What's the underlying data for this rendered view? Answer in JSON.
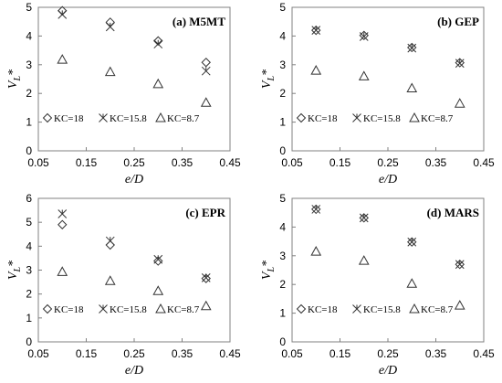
{
  "chart_data": [
    {
      "type": "scatter",
      "title": "(a) M5MT",
      "xlabel": "e/D",
      "ylabel": "V_L*",
      "xlim": [
        0.05,
        0.45
      ],
      "ylim": [
        0,
        5
      ],
      "xticks": [
        "0.05",
        "0.15",
        "0.25",
        "0.35",
        "0.45"
      ],
      "yticks": [
        "0",
        "1",
        "2",
        "3",
        "4",
        "5"
      ],
      "legend_placement": "bottom-left",
      "series": [
        {
          "name": "KC=18",
          "marker": "diamond",
          "x": [
            0.1,
            0.2,
            0.3,
            0.4
          ],
          "y": [
            4.88,
            4.48,
            3.83,
            3.08
          ]
        },
        {
          "name": "KC=15.8",
          "marker": "asterisk",
          "x": [
            0.1,
            0.2,
            0.3,
            0.4
          ],
          "y": [
            4.75,
            4.32,
            3.72,
            2.78
          ]
        },
        {
          "name": "KC=8.7",
          "marker": "triangle",
          "x": [
            0.1,
            0.2,
            0.3,
            0.4
          ],
          "y": [
            3.18,
            2.75,
            2.33,
            1.68
          ]
        }
      ]
    },
    {
      "type": "scatter",
      "title": "(b) GEP",
      "xlabel": "e/D",
      "ylabel": "V_L*",
      "xlim": [
        0.05,
        0.45
      ],
      "ylim": [
        0,
        5
      ],
      "xticks": [
        "0.05",
        "0.15",
        "0.25",
        "0.35",
        "0.45"
      ],
      "yticks": [
        "0",
        "1",
        "2",
        "3",
        "4",
        "5"
      ],
      "legend_placement": "bottom-left",
      "series": [
        {
          "name": "KC=18",
          "marker": "diamond",
          "x": [
            0.1,
            0.2,
            0.3,
            0.4
          ],
          "y": [
            4.2,
            4.02,
            3.6,
            3.07
          ]
        },
        {
          "name": "KC=15.8",
          "marker": "asterisk",
          "x": [
            0.1,
            0.2,
            0.3,
            0.4
          ],
          "y": [
            4.2,
            3.98,
            3.58,
            3.05
          ]
        },
        {
          "name": "KC=8.7",
          "marker": "triangle",
          "x": [
            0.1,
            0.2,
            0.3,
            0.4
          ],
          "y": [
            2.8,
            2.6,
            2.18,
            1.65
          ]
        }
      ]
    },
    {
      "type": "scatter",
      "title": "(c) EPR",
      "xlabel": "e/D",
      "ylabel": "V_L*",
      "xlim": [
        0.05,
        0.45
      ],
      "ylim": [
        0,
        6
      ],
      "xticks": [
        "0.05",
        "0.15",
        "0.25",
        "0.35",
        "0.45"
      ],
      "yticks": [
        "0",
        "1",
        "2",
        "3",
        "4",
        "5",
        "6"
      ],
      "legend_placement": "bottom-left",
      "series": [
        {
          "name": "KC=18",
          "marker": "diamond",
          "x": [
            0.1,
            0.2,
            0.3,
            0.4
          ],
          "y": [
            4.9,
            4.05,
            3.38,
            2.65
          ]
        },
        {
          "name": "KC=15.8",
          "marker": "asterisk",
          "x": [
            0.1,
            0.2,
            0.3,
            0.4
          ],
          "y": [
            5.35,
            4.22,
            3.45,
            2.68
          ]
        },
        {
          "name": "KC=8.7",
          "marker": "triangle",
          "x": [
            0.1,
            0.2,
            0.3,
            0.4
          ],
          "y": [
            2.93,
            2.55,
            2.13,
            1.5
          ]
        }
      ]
    },
    {
      "type": "scatter",
      "title": "(d) MARS",
      "xlabel": "e/D",
      "ylabel": "V_L*",
      "xlim": [
        0.05,
        0.45
      ],
      "ylim": [
        0,
        5
      ],
      "xticks": [
        "0.05",
        "0.15",
        "0.25",
        "0.35",
        "0.45"
      ],
      "yticks": [
        "0",
        "1",
        "2",
        "3",
        "4",
        "5"
      ],
      "legend_placement": "bottom-left",
      "series": [
        {
          "name": "KC=18",
          "marker": "diamond",
          "x": [
            0.1,
            0.2,
            0.3,
            0.4
          ],
          "y": [
            4.62,
            4.32,
            3.48,
            2.7
          ]
        },
        {
          "name": "KC=15.8",
          "marker": "asterisk",
          "x": [
            0.1,
            0.2,
            0.3,
            0.4
          ],
          "y": [
            4.62,
            4.32,
            3.48,
            2.7
          ]
        },
        {
          "name": "KC=8.7",
          "marker": "triangle",
          "x": [
            0.1,
            0.2,
            0.3,
            0.4
          ],
          "y": [
            3.15,
            2.83,
            2.03,
            1.27
          ]
        }
      ]
    }
  ]
}
